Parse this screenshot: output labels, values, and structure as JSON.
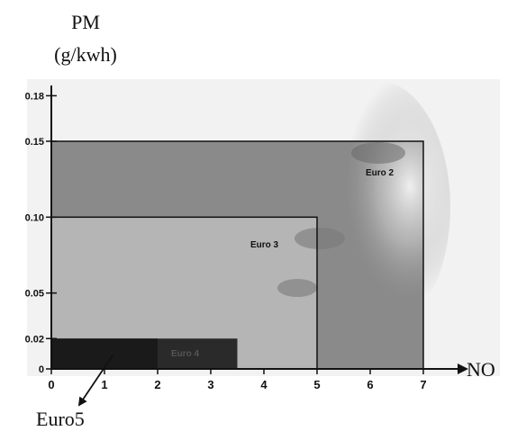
{
  "chart_data": {
    "type": "area",
    "ylabel_line1": "PM",
    "ylabel_line2": "(g/kwh)",
    "xlabel": "NO",
    "x_ticks": [
      "0",
      "1",
      "2",
      "3",
      "4",
      "5",
      "6",
      "7"
    ],
    "y_ticks": [
      {
        "value": 0,
        "label": "0"
      },
      {
        "value": 0.02,
        "label": "0.02"
      },
      {
        "value": 0.05,
        "label": "0.05"
      },
      {
        "value": 0.1,
        "label": "0.10"
      },
      {
        "value": 0.15,
        "label": "0.15"
      },
      {
        "value": 0.18,
        "label": "0.18"
      }
    ],
    "xlim": [
      0,
      7.5
    ],
    "ylim": [
      0,
      0.185
    ],
    "regions": [
      {
        "name": "Euro 2",
        "nox_max": 7.0,
        "pm_max": 0.15,
        "color": "#8a8a8a"
      },
      {
        "name": "Euro 3",
        "nox_max": 5.0,
        "pm_max": 0.1,
        "color": "#b5b5b5"
      },
      {
        "name": "Euro 4",
        "nox_max": 3.5,
        "pm_max": 0.02,
        "color": "#2a2a2a"
      },
      {
        "name": "Euro5",
        "nox_max": 2.0,
        "pm_max": 0.02,
        "color": "#1a1a1a"
      }
    ],
    "region_labels": {
      "euro2": "Euro 2",
      "euro3": "Euro 3",
      "euro4": "Euro 4"
    },
    "annotation": "Euro5",
    "grid": false,
    "legend": "none"
  }
}
